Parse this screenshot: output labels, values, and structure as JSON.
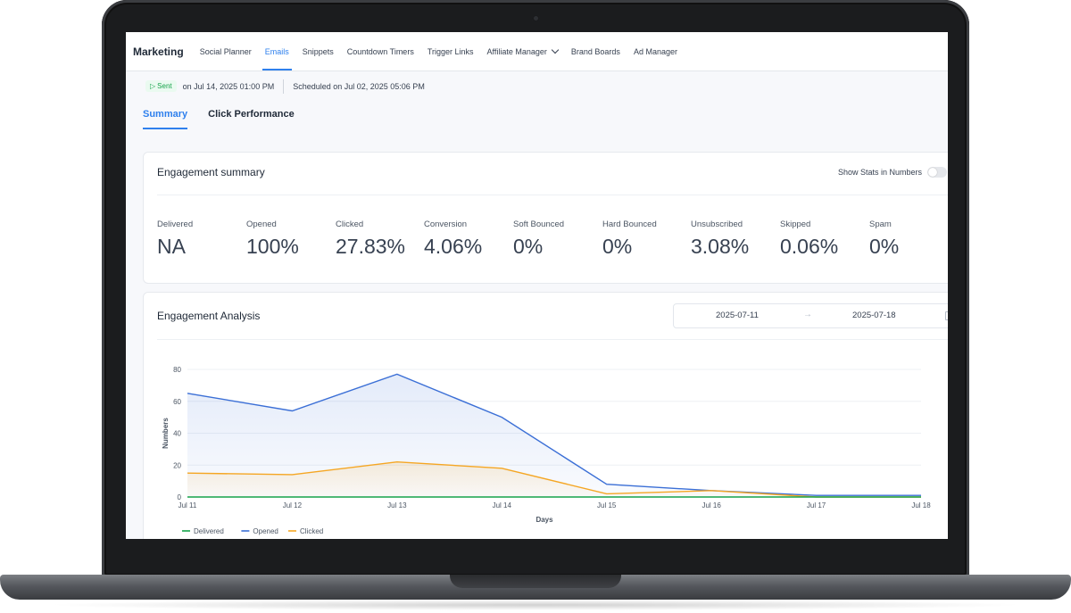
{
  "nav": {
    "brand": "Marketing",
    "items": [
      {
        "label": "Social Planner"
      },
      {
        "label": "Emails",
        "active": true
      },
      {
        "label": "Snippets"
      },
      {
        "label": "Countdown Timers"
      },
      {
        "label": "Trigger Links"
      },
      {
        "label": "Affiliate Manager",
        "dropdown": true
      },
      {
        "label": "Brand Boards"
      },
      {
        "label": "Ad Manager"
      }
    ]
  },
  "status": {
    "badge": "Sent",
    "sent_on": "on Jul 14, 2025 01:00 PM",
    "scheduled": "Scheduled on Jul 02, 2025 05:06 PM"
  },
  "tabs": [
    {
      "label": "Summary",
      "active": true
    },
    {
      "label": "Click Performance"
    }
  ],
  "engagement_summary": {
    "title": "Engagement summary",
    "toggle_label": "Show Stats in Numbers",
    "stats": [
      {
        "label": "Delivered",
        "value": "NA"
      },
      {
        "label": "Opened",
        "value": "100%"
      },
      {
        "label": "Clicked",
        "value": "27.83%"
      },
      {
        "label": "Conversion",
        "value": "4.06%"
      },
      {
        "label": "Soft Bounced",
        "value": "0%"
      },
      {
        "label": "Hard Bounced",
        "value": "0%"
      },
      {
        "label": "Unsubscribed",
        "value": "3.08%"
      },
      {
        "label": "Skipped",
        "value": "0.06%"
      },
      {
        "label": "Spam",
        "value": "0%"
      }
    ]
  },
  "engagement_analysis": {
    "title": "Engagement Analysis",
    "date_from": "2025-07-11",
    "date_to": "2025-07-18"
  },
  "colors": {
    "accent": "#2f80ed",
    "delivered": "#16a34a",
    "opened": "#3b6fd6",
    "clicked": "#f5a623"
  },
  "chart_data": {
    "type": "area",
    "categories": [
      "Jul 11",
      "Jul 12",
      "Jul 13",
      "Jul 14",
      "Jul 15",
      "Jul 16",
      "Jul 17",
      "Jul 18"
    ],
    "series": [
      {
        "name": "Delivered",
        "values": [
          0,
          0,
          0,
          0,
          0,
          0,
          0,
          0
        ]
      },
      {
        "name": "Opened",
        "values": [
          65,
          54,
          77,
          50,
          8,
          4,
          1,
          1
        ]
      },
      {
        "name": "Clicked",
        "values": [
          15,
          14,
          22,
          18,
          2,
          4,
          0,
          0
        ]
      }
    ],
    "xlabel": "Days",
    "ylabel": "Numbers",
    "ylim": [
      0,
      80
    ],
    "yticks": [
      0,
      20,
      40,
      60,
      80
    ],
    "grid": true,
    "legend": "bottom-left"
  }
}
